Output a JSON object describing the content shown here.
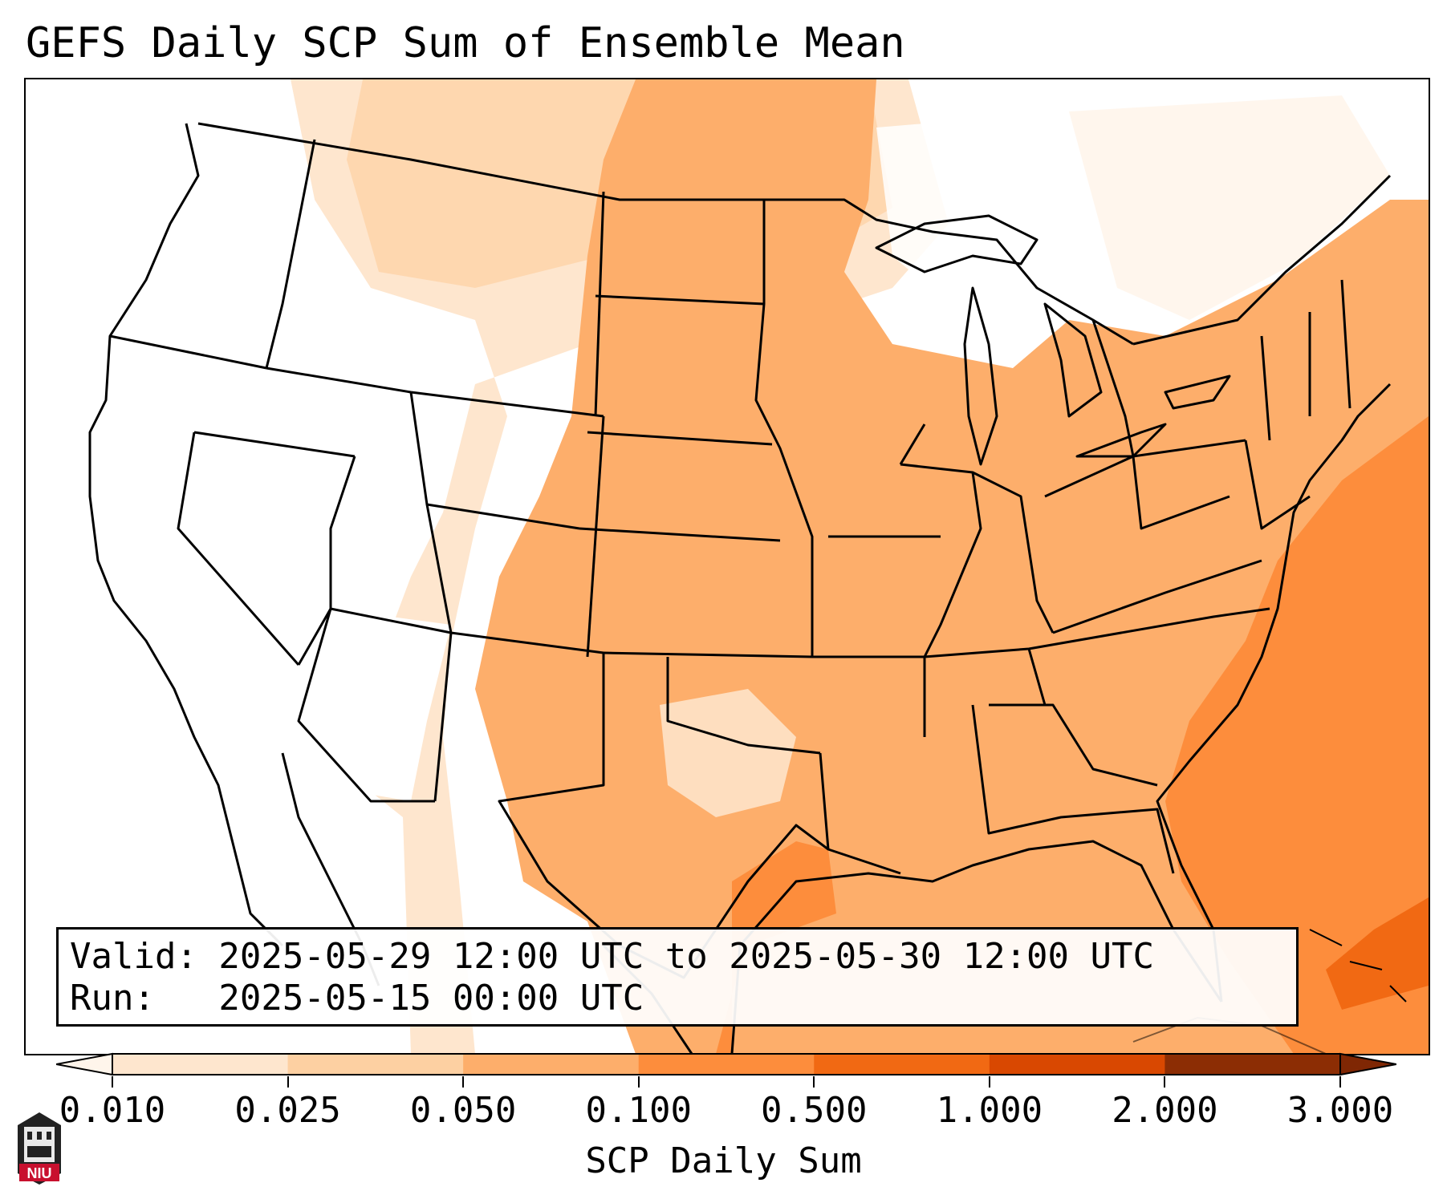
{
  "title": "GEFS Daily SCP Sum of Ensemble Mean",
  "valid_line": "Valid: 2025-05-29 12:00 UTC to 2025-05-30 12:00 UTC",
  "run_line": "Run:   2025-05-15 00:00 UTC",
  "colorbar": {
    "label": "SCP Daily Sum",
    "ticks": [
      "0.010",
      "0.025",
      "0.050",
      "0.100",
      "0.500",
      "1.000",
      "2.000",
      "3.000"
    ],
    "colors": [
      "#fff5eb",
      "#fee6ce",
      "#fdd0a2",
      "#fdae6b",
      "#fd8d3c",
      "#f16913",
      "#d94801",
      "#8c2d04"
    ]
  },
  "logo": {
    "text": "NIU",
    "color": "#c8102e"
  }
}
